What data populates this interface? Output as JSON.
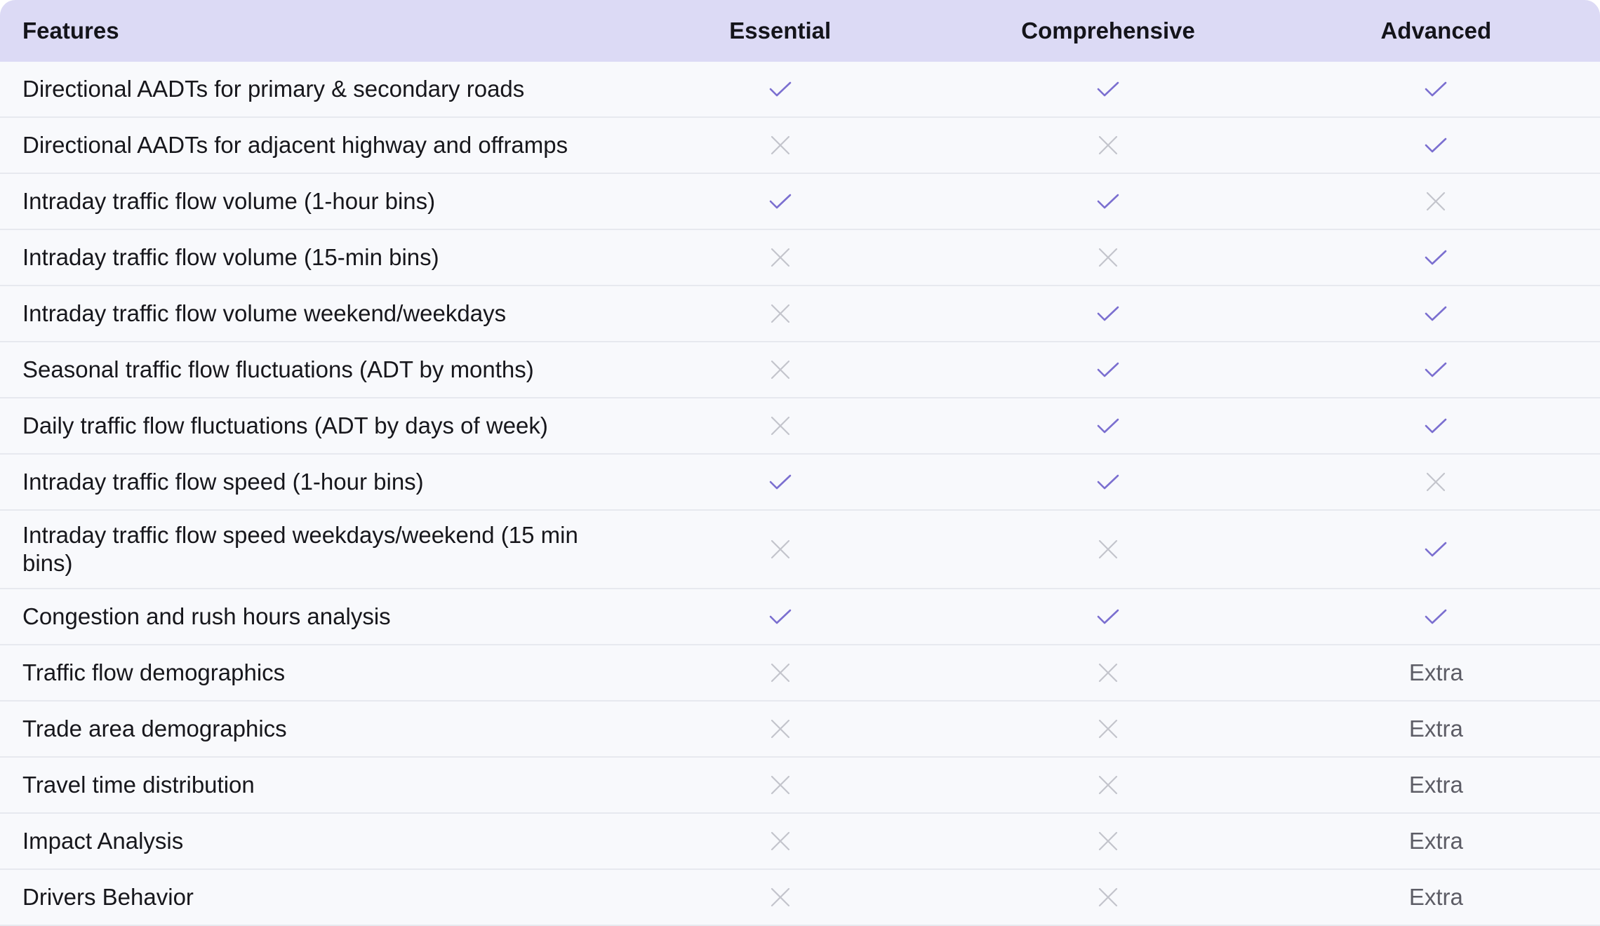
{
  "header": {
    "features": "Features",
    "plans": [
      "Essential",
      "Comprehensive",
      "Advanced"
    ]
  },
  "colors": {
    "header_bg": "#dcdaf5",
    "check": "#7b6fd0",
    "cross": "#c3c4cc",
    "row_bg": "#f8f9fc"
  },
  "rows": [
    {
      "feature": "Directional AADTs for primary & secondary roads",
      "values": [
        "check",
        "check",
        "check"
      ]
    },
    {
      "feature": "Directional AADTs for adjacent highway and offramps",
      "values": [
        "cross",
        "cross",
        "check"
      ]
    },
    {
      "feature": "Intraday traffic flow volume (1-hour bins)",
      "values": [
        "check",
        "check",
        "cross"
      ]
    },
    {
      "feature": "Intraday traffic flow volume (15-min bins)",
      "values": [
        "cross",
        "cross",
        "check"
      ]
    },
    {
      "feature": "Intraday traffic flow volume weekend/weekdays",
      "values": [
        "cross",
        "check",
        "check"
      ]
    },
    {
      "feature": "Seasonal traffic flow fluctuations (ADT by months)",
      "values": [
        "cross",
        "check",
        "check"
      ]
    },
    {
      "feature": "Daily traffic flow fluctuations (ADT by days of week)",
      "values": [
        "cross",
        "check",
        "check"
      ]
    },
    {
      "feature": "Intraday traffic flow speed (1-hour bins)",
      "values": [
        "check",
        "check",
        "cross"
      ]
    },
    {
      "feature": "Intraday traffic flow speed weekdays/weekend (15 min bins)",
      "values": [
        "cross",
        "cross",
        "check"
      ]
    },
    {
      "feature": "Congestion and rush hours analysis",
      "values": [
        "check",
        "check",
        "check"
      ]
    },
    {
      "feature": "Traffic flow demographics",
      "values": [
        "cross",
        "cross",
        "Extra"
      ]
    },
    {
      "feature": "Trade area demographics",
      "values": [
        "cross",
        "cross",
        "Extra"
      ]
    },
    {
      "feature": "Travel time distribution",
      "values": [
        "cross",
        "cross",
        "Extra"
      ]
    },
    {
      "feature": "Impact Analysis",
      "values": [
        "cross",
        "cross",
        "Extra"
      ]
    },
    {
      "feature": "Drivers Behavior",
      "values": [
        "cross",
        "cross",
        "Extra"
      ]
    }
  ]
}
